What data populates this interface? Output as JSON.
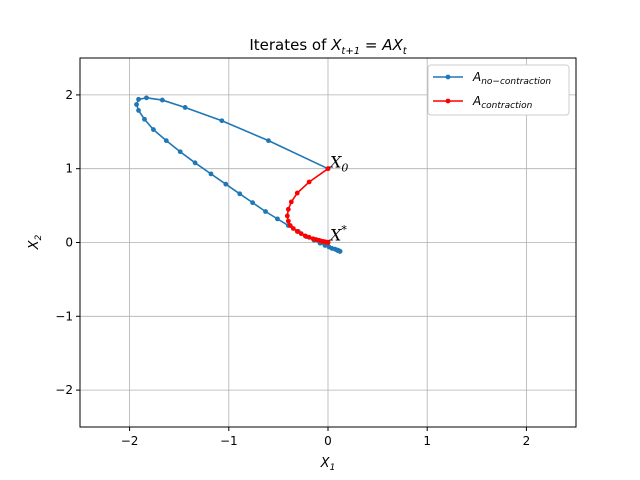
{
  "chart_data": {
    "type": "line",
    "title_prefix": "Iterates of ",
    "title_math": "X",
    "title_math_sub": "t+1",
    "title_eq": " = AX",
    "title_eq_sub": "t",
    "xlabel_main": "X",
    "xlabel_sub": "1",
    "ylabel_main": "X",
    "ylabel_sub": "2",
    "xlim": [
      -2.5,
      2.5
    ],
    "ylim": [
      -2.5,
      2.5
    ],
    "xticks": [
      -2,
      -1,
      0,
      1,
      2
    ],
    "yticks": [
      -2,
      -1,
      0,
      1,
      2
    ],
    "grid": true,
    "legend_position": "top-right",
    "annotations": [
      {
        "main": "X",
        "sub": "0",
        "x": 0.0,
        "y": 1.0
      },
      {
        "main": "X",
        "sup": "*",
        "x": 0.0,
        "y": 0.0
      }
    ],
    "series": [
      {
        "name_main": "A",
        "name_sub": "no−contraction",
        "color": "#1f77b4",
        "x": [
          0.0,
          -0.6,
          -1.07,
          -1.44,
          -1.67,
          -1.83,
          -1.91,
          -1.93,
          -1.91,
          -1.85,
          -1.76,
          -1.63,
          -1.49,
          -1.34,
          -1.18,
          -1.03,
          -0.89,
          -0.76,
          -0.63,
          -0.51,
          -0.4,
          -0.3,
          -0.22,
          -0.14,
          -0.08,
          -0.03,
          0.01,
          0.04,
          0.07,
          0.09,
          0.1,
          0.11,
          0.12,
          0.12,
          0.12,
          0.12
        ],
        "y": [
          1.0,
          1.38,
          1.65,
          1.83,
          1.93,
          1.96,
          1.94,
          1.87,
          1.79,
          1.67,
          1.53,
          1.38,
          1.23,
          1.08,
          0.93,
          0.79,
          0.66,
          0.54,
          0.42,
          0.32,
          0.23,
          0.15,
          0.08,
          0.03,
          -0.01,
          -0.04,
          -0.06,
          -0.08,
          -0.09,
          -0.1,
          -0.11,
          -0.11,
          -0.12,
          -0.12,
          -0.12,
          -0.12
        ]
      },
      {
        "name_main": "A",
        "name_sub": "contraction",
        "color": "#ff0000",
        "x": [
          0.0,
          -0.19,
          -0.31,
          -0.37,
          -0.4,
          -0.41,
          -0.4,
          -0.38,
          -0.35,
          -0.31,
          -0.27,
          -0.23,
          -0.19,
          -0.15,
          -0.12,
          -0.09,
          -0.07,
          -0.05,
          -0.03,
          -0.02,
          -0.01,
          0.0,
          0.0
        ],
        "y": [
          1.0,
          0.82,
          0.67,
          0.55,
          0.45,
          0.36,
          0.29,
          0.23,
          0.19,
          0.15,
          0.12,
          0.09,
          0.07,
          0.05,
          0.04,
          0.03,
          0.02,
          0.015,
          0.01,
          0.005,
          0.003,
          0.001,
          0.0
        ]
      }
    ]
  }
}
